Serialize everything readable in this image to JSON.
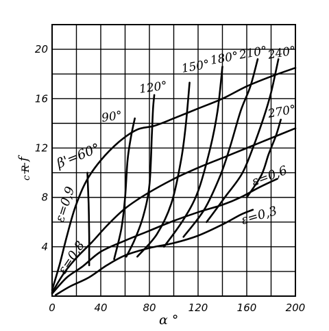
{
  "chart_data": {
    "type": "line",
    "xlabel": "α °",
    "ylabel_num": "R",
    "ylabel_den": "c",
    "ylabel_tail": "f",
    "xlim": [
      0,
      200
    ],
    "ylim": [
      0,
      22
    ],
    "x_ticks": [
      0,
      40,
      80,
      120,
      160,
      200
    ],
    "y_ticks": [
      4,
      8,
      12,
      16,
      20
    ],
    "grid": true,
    "beta_series": [
      {
        "name": "β'=60°",
        "points": [
          [
            29,
            10.0
          ],
          [
            30,
            7.5
          ],
          [
            30.5,
            5
          ],
          [
            30.5,
            3.5
          ],
          [
            30.5,
            2.5
          ]
        ]
      },
      {
        "name": "90°",
        "points": [
          [
            51,
            3.0
          ],
          [
            57,
            5.5
          ],
          [
            60,
            8
          ],
          [
            62,
            11
          ],
          [
            65,
            13
          ],
          [
            68,
            14.4
          ]
        ]
      },
      {
        "name": "120°",
        "points": [
          [
            61,
            3.2
          ],
          [
            68,
            4.6
          ],
          [
            75,
            6.5
          ],
          [
            80,
            9
          ],
          [
            82,
            13
          ],
          [
            83,
            15.2
          ],
          [
            84,
            16.3
          ]
        ]
      },
      {
        "name": "150°",
        "points": [
          [
            70,
            3.2
          ],
          [
            86,
            5
          ],
          [
            98,
            7.5
          ],
          [
            106,
            11
          ],
          [
            110,
            14
          ],
          [
            113,
            17.3
          ]
        ]
      },
      {
        "name": "180°",
        "points": [
          [
            92,
            4.0
          ],
          [
            108,
            6.2
          ],
          [
            120,
            8.5
          ],
          [
            130,
            12
          ],
          [
            136,
            15
          ],
          [
            140,
            18.6
          ]
        ]
      },
      {
        "name": "210°",
        "points": [
          [
            108,
            4.8
          ],
          [
            125,
            7
          ],
          [
            138,
            9.7
          ],
          [
            146,
            12
          ],
          [
            155,
            15
          ],
          [
            163,
            17
          ],
          [
            169,
            19.2
          ]
        ]
      },
      {
        "name": "240°",
        "points": [
          [
            127,
            6.0
          ],
          [
            142,
            8
          ],
          [
            156,
            9.9
          ],
          [
            165,
            12
          ],
          [
            174,
            14.5
          ],
          [
            180,
            16.5
          ],
          [
            186,
            19.2
          ]
        ]
      },
      {
        "name": "270°",
        "points": [
          [
            160,
            8
          ],
          [
            172,
            9.8
          ],
          [
            178,
            11.5
          ],
          [
            184,
            13
          ],
          [
            188,
            14.3
          ]
        ]
      }
    ],
    "epsilon_series": [
      {
        "name": "ε=0,9",
        "points": [
          [
            0,
            0.5
          ],
          [
            6,
            2.5
          ],
          [
            12,
            4.8
          ],
          [
            19,
            7.2
          ],
          [
            28,
            9.3
          ],
          [
            40,
            11
          ],
          [
            55,
            12.5
          ],
          [
            70,
            13.5
          ],
          [
            84,
            13.8
          ],
          [
            100,
            14.4
          ],
          [
            120,
            15.2
          ],
          [
            140,
            16
          ],
          [
            160,
            17
          ],
          [
            180,
            17.8
          ],
          [
            200,
            18.5
          ]
        ]
      },
      {
        "name": "ε=0,8",
        "points": [
          [
            0,
            0.3
          ],
          [
            10,
            1.9
          ],
          [
            20,
            3.1
          ],
          [
            33,
            4.4
          ],
          [
            45,
            5.7
          ],
          [
            60,
            7.1
          ],
          [
            78,
            8.3
          ],
          [
            100,
            9.5
          ],
          [
            120,
            10.4
          ],
          [
            140,
            11.2
          ],
          [
            160,
            12
          ],
          [
            180,
            12.8
          ],
          [
            200,
            13.6
          ]
        ]
      },
      {
        "name": "ε=0,6",
        "points": [
          [
            0,
            0.2
          ],
          [
            12,
            1.5
          ],
          [
            25,
            2.4
          ],
          [
            40,
            3.6
          ],
          [
            60,
            4.5
          ],
          [
            80,
            5.3
          ],
          [
            100,
            6.1
          ],
          [
            120,
            6.8
          ],
          [
            140,
            7.4
          ],
          [
            155,
            8
          ],
          [
            170,
            8.8
          ],
          [
            185,
            9.5
          ]
        ]
      },
      {
        "name": "ε=0,3",
        "points": [
          [
            3,
            0.1
          ],
          [
            15,
            0.8
          ],
          [
            30,
            1.5
          ],
          [
            45,
            2.5
          ],
          [
            60,
            3.3
          ],
          [
            80,
            3.9
          ],
          [
            100,
            4.3
          ],
          [
            120,
            4.9
          ],
          [
            140,
            5.8
          ],
          [
            155,
            6.6
          ],
          [
            165,
            7.0
          ]
        ]
      }
    ],
    "labels": {
      "b60": "β'=60°",
      "b90": "90°",
      "b120": "120°",
      "b150": "150°",
      "b180": "180°",
      "b210": "210°",
      "b240": "240°",
      "b270": "270°",
      "e09": "ε=0,9",
      "e08": "ε=0,8",
      "e06": "ε=0,6",
      "e03": "ε=0,3"
    }
  }
}
